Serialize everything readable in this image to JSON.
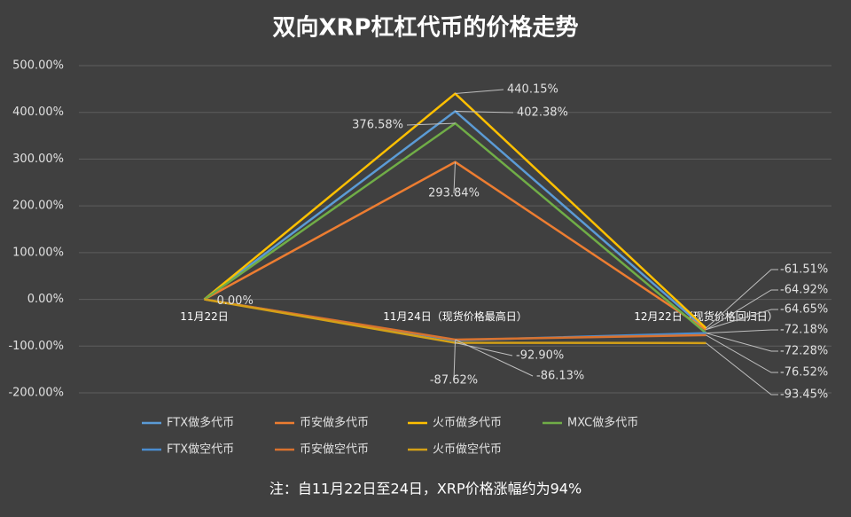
{
  "chart_data": {
    "type": "line",
    "title": "双向XRP杠杠代币的价格走势",
    "footnote": "注：自11月22日至24日，XRP价格涨幅约为94%",
    "categories": [
      "11月22日",
      "11月24日（现货价格最高日）",
      "12月22日（现货价格回归日）"
    ],
    "ylim": [
      -200,
      500
    ],
    "yticks": [
      {
        "value": -200,
        "label": "-200.00%"
      },
      {
        "value": -100,
        "label": "-100.00%"
      },
      {
        "value": 0,
        "label": "0.00%"
      },
      {
        "value": 100,
        "label": "100.00%"
      },
      {
        "value": 200,
        "label": "200.00%"
      },
      {
        "value": 300,
        "label": "300.00%"
      },
      {
        "value": 400,
        "label": "400.00%"
      },
      {
        "value": 500,
        "label": "500.00%"
      }
    ],
    "grid": true,
    "series": [
      {
        "name": "FTX做多代币",
        "color": "#5b9bd5",
        "values": [
          0,
          402.38,
          -64.65
        ],
        "value_labels": [
          null,
          "402.38%",
          "-64.65%"
        ]
      },
      {
        "name": "币安做多代币",
        "color": "#ed7d31",
        "values": [
          0,
          293.84,
          -64.92
        ],
        "value_labels": [
          null,
          "293.84%",
          "-64.92%"
        ]
      },
      {
        "name": "火币做多代币",
        "color": "#ffc000",
        "values": [
          0,
          440.15,
          -61.51
        ],
        "value_labels": [
          null,
          "440.15%",
          "-61.51%"
        ]
      },
      {
        "name": "MXC做多代币",
        "color": "#70ad47",
        "values": [
          0,
          376.58,
          -72.18
        ],
        "value_labels": [
          null,
          "376.58%",
          "-72.18%"
        ]
      },
      {
        "name": "FTX做空代币",
        "color": "#4a8ccf",
        "values": [
          0,
          -87.62,
          -72.28
        ],
        "value_labels": [
          null,
          "-87.62%",
          "-72.28%"
        ]
      },
      {
        "name": "币安做空代币",
        "color": "#d9722e",
        "values": [
          0,
          -86.13,
          -76.52
        ],
        "value_labels": [
          null,
          "-86.13%",
          "-76.52%"
        ]
      },
      {
        "name": "火币做空代币",
        "color": "#d4a017",
        "values": [
          0,
          -92.9,
          -93.45
        ],
        "value_labels": [
          "0.00%",
          "-92.90%",
          "-93.45%"
        ]
      }
    ]
  }
}
